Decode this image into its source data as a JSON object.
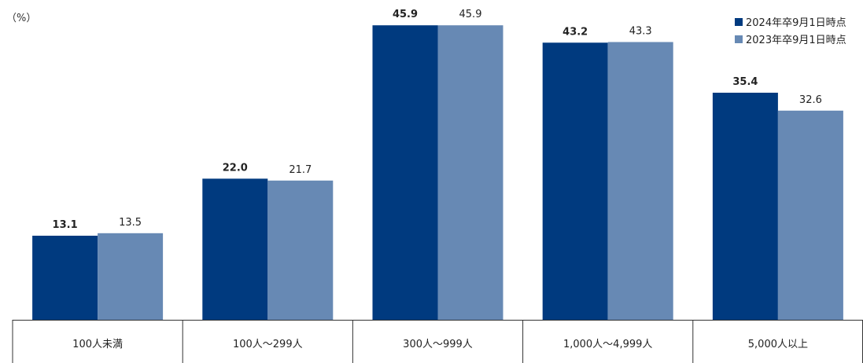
{
  "unit_label": "（%）",
  "legend": [
    {
      "label": "2024年卒9月1日時点",
      "color": "#003a7f"
    },
    {
      "label": "2023年卒9月1日時点",
      "color": "#6789b4"
    }
  ],
  "chart_data": {
    "type": "bar",
    "title": "",
    "xlabel": "",
    "ylabel": "（%）",
    "ylim": [
      0,
      50
    ],
    "grid": false,
    "legend_position": "top-right",
    "categories": [
      "100人未満",
      "100人～299人",
      "300人～999人",
      "1,000人～4,999人",
      "5,000人以上"
    ],
    "series": [
      {
        "name": "2024年卒9月1日時点",
        "color": "#003a7f",
        "values": [
          13.1,
          22.0,
          45.9,
          43.2,
          35.4
        ],
        "labels": [
          "13.1",
          "22.0",
          "45.9",
          "43.2",
          "35.4"
        ]
      },
      {
        "name": "2023年卒9月1日時点",
        "color": "#6789b4",
        "values": [
          13.5,
          21.7,
          45.9,
          43.3,
          32.6
        ],
        "labels": [
          "13.5",
          "21.7",
          "45.9",
          "43.3",
          "32.6"
        ]
      }
    ]
  }
}
